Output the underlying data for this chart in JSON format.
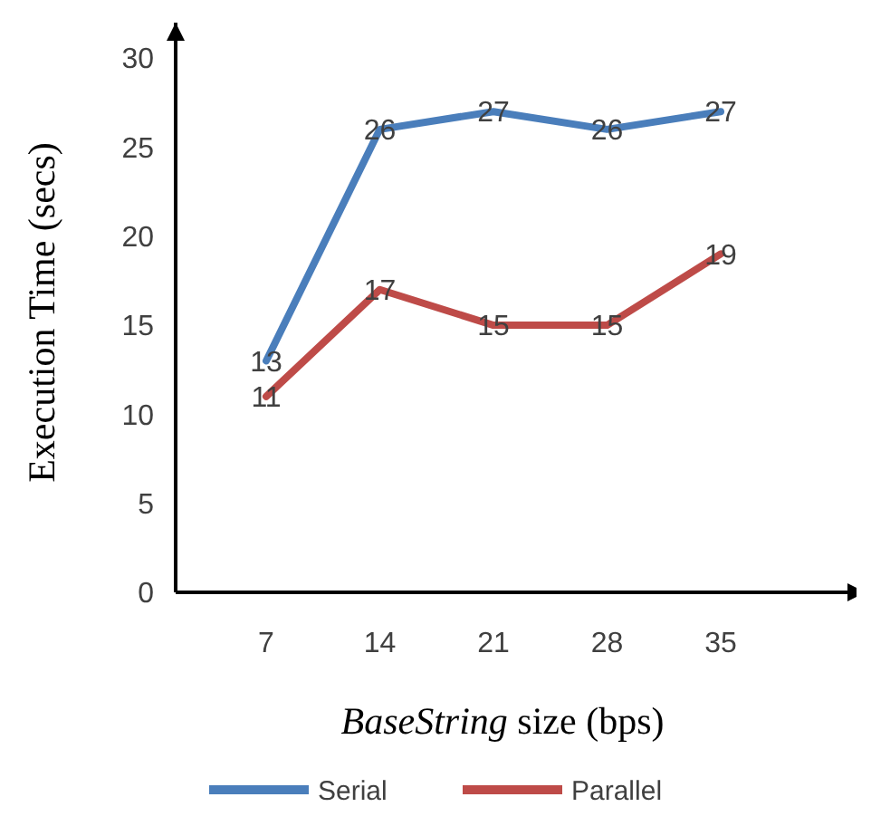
{
  "chart_data": {
    "type": "line",
    "xlabel": "BaseString size (bps)",
    "ylabel": "Execution Time (secs)",
    "categories": [
      "7",
      "14",
      "21",
      "28",
      "35"
    ],
    "series": [
      {
        "name": "Serial",
        "color": "#4a7ebb",
        "values": [
          13,
          26,
          27,
          26,
          27
        ]
      },
      {
        "name": "Parallel",
        "color": "#be4b48",
        "values": [
          11,
          17,
          15,
          15,
          19
        ]
      }
    ],
    "ylim": [
      0,
      32
    ],
    "yticks": [
      0,
      5,
      10,
      15,
      20,
      25,
      30
    ],
    "data_labels": true,
    "legend": "bottom",
    "grid": false,
    "marker": "none",
    "line_style": "solid"
  }
}
